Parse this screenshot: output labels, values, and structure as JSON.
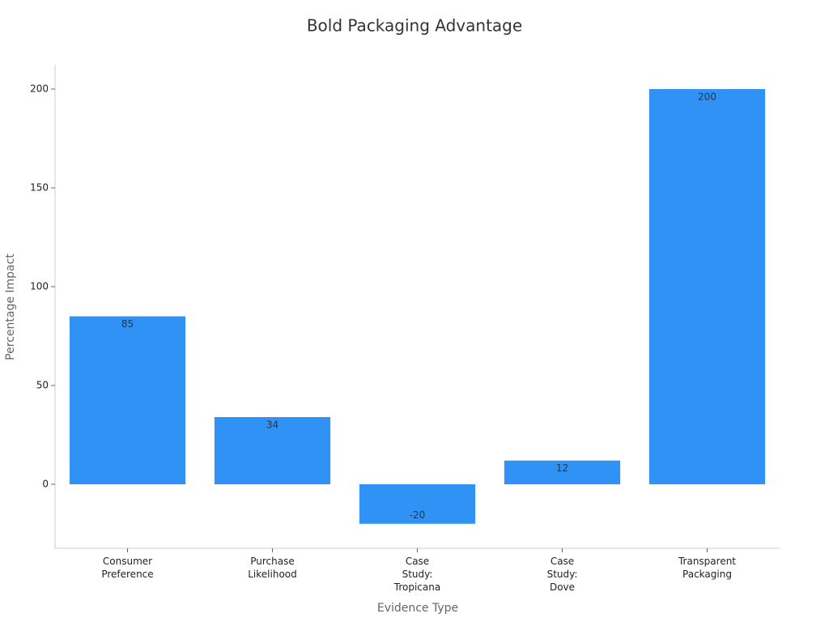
{
  "chart_data": {
    "type": "bar",
    "title": "Bold Packaging Advantage",
    "x_label": "Evidence Type",
    "y_label": "Percentage Impact",
    "categories": [
      "Consumer\nPreference",
      "Purchase\nLikelihood",
      "Case\nStudy:\nTropicana",
      "Case\nStudy:\nDove",
      "Transparent\nPackaging"
    ],
    "values": [
      85,
      34,
      -20,
      12,
      200
    ],
    "color": "#2f92f4",
    "ylim": [
      -32.4,
      212.3
    ],
    "yticks": [
      0,
      50,
      100,
      150,
      200
    ],
    "grid": false
  }
}
